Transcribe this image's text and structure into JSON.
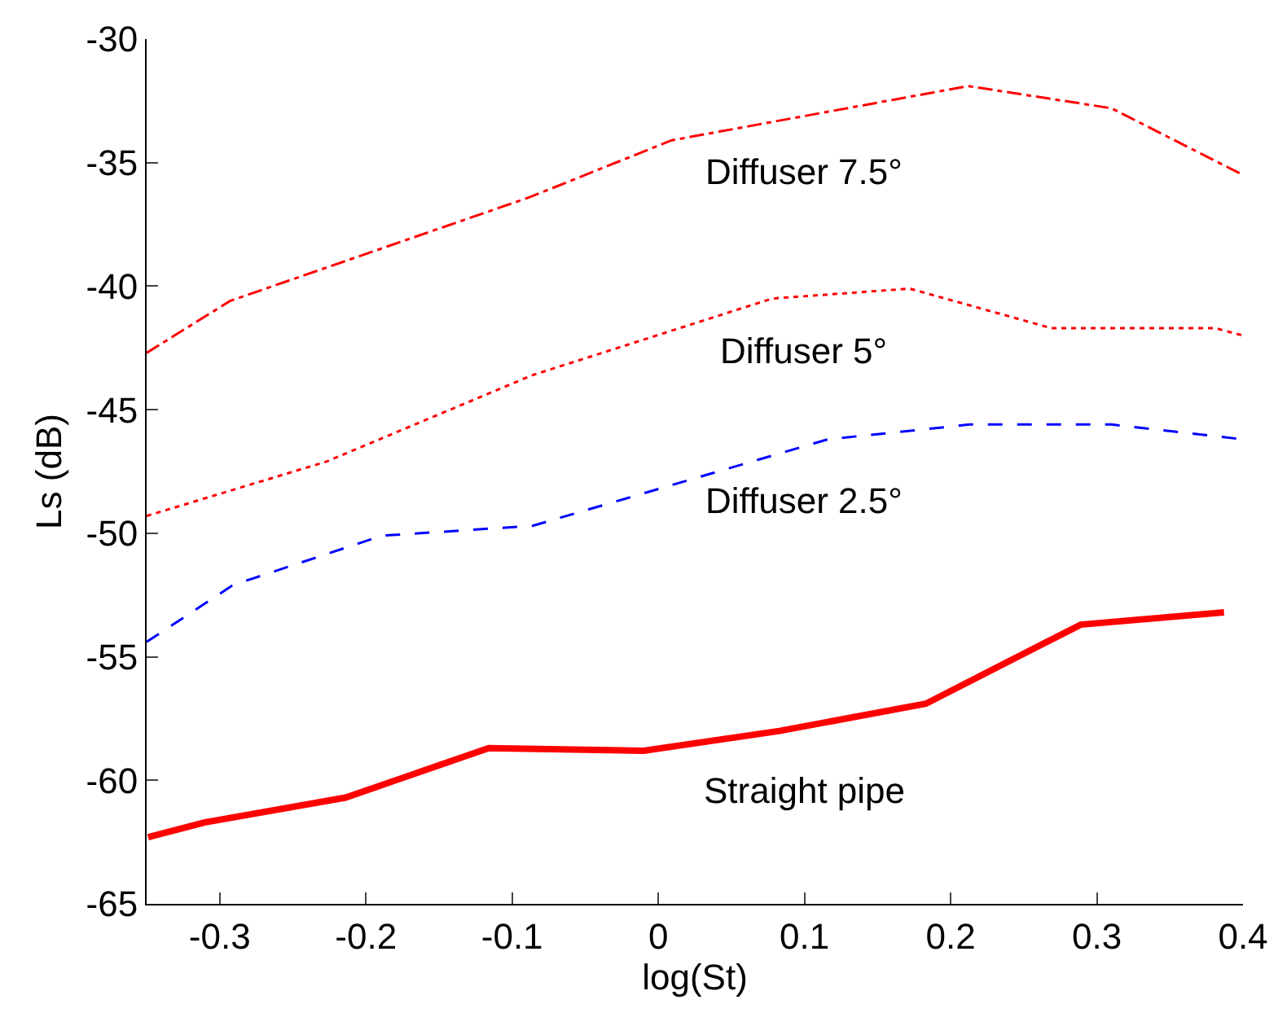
{
  "chart_data": {
    "type": "line",
    "xlabel": "log(St)",
    "ylabel": "Ls (dB)",
    "xlim": [
      -0.35,
      0.4
    ],
    "xticks": [
      -0.3,
      -0.2,
      -0.1,
      0,
      0.1,
      0.2,
      0.3,
      0.4
    ],
    "ylim": [
      -65,
      -30
    ],
    "yticks": [
      -65,
      -60,
      -55,
      -50,
      -45,
      -40,
      -35,
      -30
    ],
    "legend": false,
    "marker": "none",
    "series": [
      {
        "name": "Diffuser 7.5°",
        "color": "#ff0000",
        "line_style": "dashdot",
        "x": [
          -0.35,
          -0.293,
          -0.088,
          0.009,
          0.212,
          0.31,
          0.4
        ],
        "values": [
          -42.7,
          -40.6,
          -36.4,
          -34.1,
          -31.9,
          -32.8,
          -35.5
        ]
      },
      {
        "name": "Diffuser 5°",
        "color": "#ff0000",
        "line_style": "dotted",
        "x": [
          -0.35,
          -0.227,
          -0.086,
          0.078,
          0.172,
          0.269,
          0.381,
          0.4
        ],
        "values": [
          -49.3,
          -47.1,
          -43.6,
          -40.5,
          -40.1,
          -41.7,
          -41.7,
          -42.0
        ]
      },
      {
        "name": "Diffuser 2.5°",
        "color": "#0000ff",
        "line_style": "dashed",
        "x": [
          -0.35,
          -0.291,
          -0.189,
          -0.086,
          0.116,
          0.213,
          0.31,
          0.4
        ],
        "values": [
          -54.4,
          -52.1,
          -50.1,
          -49.7,
          -46.2,
          -45.6,
          -45.6,
          -46.2
        ]
      },
      {
        "name": "Straight pipe",
        "color": "#ff0000",
        "line_style": "solid",
        "x": [
          -0.349,
          -0.31,
          -0.214,
          -0.116,
          -0.01,
          0.083,
          0.183,
          0.289,
          0.387
        ],
        "values": [
          -62.3,
          -61.7,
          -60.7,
          -58.7,
          -58.8,
          -58.0,
          -56.9,
          -53.7,
          -53.2
        ]
      }
    ]
  }
}
